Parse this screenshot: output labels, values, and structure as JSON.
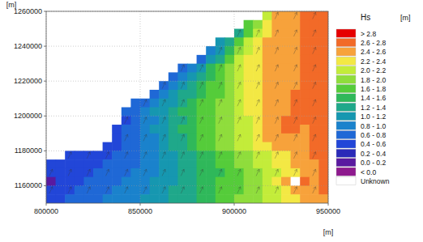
{
  "chart_data": {
    "type": "heatmap",
    "xlabel": "[m]",
    "ylabel": "[m]",
    "xlim": [
      800000,
      950000
    ],
    "ylim": [
      1150000,
      1260000
    ],
    "xticks": [
      800000,
      850000,
      900000,
      950000
    ],
    "yticks": [
      1160000,
      1180000,
      1200000,
      1220000,
      1240000,
      1260000
    ],
    "grid": true,
    "x": [
      802500,
      807500,
      812500,
      817500,
      822500,
      827500,
      832500,
      837500,
      842500,
      847500,
      852500,
      857500,
      862500,
      867500,
      872500,
      877500,
      882500,
      887500,
      892500,
      897500,
      902500,
      907500,
      912500,
      917500,
      922500,
      927500,
      932500,
      937500,
      942500,
      947500
    ],
    "y": [
      1257500,
      1252500,
      1247500,
      1242500,
      1237500,
      1232500,
      1227500,
      1222500,
      1217500,
      1212500,
      1207500,
      1202500,
      1197500,
      1192500,
      1187500,
      1182500,
      1177500,
      1172500,
      1167500,
      1162500,
      1157500,
      1152500
    ],
    "cells": [
      [
        null,
        null,
        null,
        null,
        null,
        null,
        null,
        null,
        null,
        null,
        null,
        null,
        null,
        null,
        null,
        null,
        null,
        null,
        null,
        null,
        null,
        null,
        null,
        2.1,
        2.4,
        2.5,
        2.5,
        2.6,
        2.7,
        2.7
      ],
      [
        null,
        null,
        null,
        null,
        null,
        null,
        null,
        null,
        null,
        null,
        null,
        null,
        null,
        null,
        null,
        null,
        null,
        null,
        null,
        null,
        null,
        1.6,
        1.9,
        2.3,
        2.4,
        2.5,
        2.5,
        2.6,
        2.7,
        2.7
      ],
      [
        null,
        null,
        null,
        null,
        null,
        null,
        null,
        null,
        null,
        null,
        null,
        null,
        null,
        null,
        null,
        null,
        null,
        null,
        null,
        null,
        1.3,
        1.7,
        2.1,
        2.3,
        2.5,
        2.5,
        2.5,
        2.6,
        2.7,
        2.7
      ],
      [
        null,
        null,
        null,
        null,
        null,
        null,
        null,
        null,
        null,
        null,
        null,
        null,
        null,
        null,
        null,
        null,
        null,
        null,
        1.0,
        1.3,
        1.7,
        2.0,
        2.3,
        2.4,
        2.5,
        2.5,
        2.5,
        2.6,
        2.7,
        2.7
      ],
      [
        null,
        null,
        null,
        null,
        null,
        null,
        null,
        null,
        null,
        null,
        null,
        null,
        null,
        null,
        null,
        null,
        null,
        0.8,
        1.1,
        1.5,
        1.8,
        2.1,
        2.3,
        2.4,
        2.5,
        2.5,
        2.5,
        2.6,
        2.7,
        2.7
      ],
      [
        null,
        null,
        null,
        null,
        null,
        null,
        null,
        null,
        null,
        null,
        null,
        null,
        null,
        null,
        null,
        null,
        0.7,
        1.0,
        1.3,
        1.7,
        2.0,
        2.2,
        2.3,
        2.4,
        2.5,
        2.5,
        2.5,
        2.6,
        2.7,
        2.7
      ],
      [
        null,
        null,
        null,
        null,
        null,
        null,
        null,
        null,
        null,
        null,
        null,
        null,
        null,
        null,
        0.6,
        0.8,
        1.1,
        1.4,
        1.7,
        1.9,
        2.1,
        2.2,
        2.3,
        2.4,
        2.5,
        2.5,
        2.5,
        2.6,
        2.7,
        2.7
      ],
      [
        null,
        null,
        null,
        null,
        null,
        null,
        null,
        null,
        null,
        null,
        null,
        null,
        null,
        0.6,
        0.8,
        1.0,
        1.3,
        1.5,
        1.7,
        1.9,
        2.1,
        2.2,
        2.3,
        2.4,
        2.5,
        2.5,
        2.5,
        2.6,
        2.7,
        2.7
      ],
      [
        null,
        null,
        null,
        null,
        null,
        null,
        null,
        null,
        null,
        null,
        null,
        null,
        0.7,
        0.8,
        1.0,
        1.2,
        1.4,
        1.6,
        1.7,
        1.9,
        2.0,
        2.2,
        2.3,
        2.4,
        2.5,
        2.5,
        2.5,
        2.6,
        2.7,
        2.7
      ],
      [
        null,
        null,
        null,
        null,
        null,
        null,
        null,
        null,
        null,
        null,
        null,
        0.7,
        0.8,
        1.0,
        1.2,
        1.3,
        1.5,
        1.6,
        1.7,
        1.9,
        2.0,
        2.2,
        2.3,
        2.4,
        2.5,
        2.5,
        2.6,
        2.6,
        2.7,
        2.7
      ],
      [
        null,
        null,
        null,
        null,
        null,
        null,
        null,
        null,
        null,
        0.6,
        0.7,
        0.8,
        1.0,
        1.1,
        1.3,
        1.4,
        1.6,
        1.7,
        1.8,
        1.9,
        2.0,
        2.2,
        2.3,
        2.4,
        2.5,
        2.5,
        2.6,
        2.6,
        2.7,
        2.7
      ],
      [
        null,
        null,
        null,
        null,
        null,
        null,
        null,
        null,
        0.6,
        0.7,
        0.8,
        1.0,
        1.1,
        1.2,
        1.4,
        1.5,
        1.6,
        1.7,
        1.8,
        1.9,
        2.0,
        2.2,
        2.3,
        2.4,
        2.5,
        2.5,
        2.7,
        2.7,
        2.6,
        2.7
      ],
      [
        null,
        null,
        null,
        null,
        null,
        null,
        null,
        null,
        0.5,
        0.7,
        0.8,
        0.9,
        1.1,
        1.2,
        1.3,
        1.5,
        1.6,
        1.7,
        1.8,
        1.9,
        2.0,
        2.1,
        2.3,
        2.4,
        2.5,
        2.6,
        2.7,
        2.7,
        2.6,
        2.7
      ],
      [
        null,
        null,
        null,
        null,
        null,
        null,
        null,
        0.5,
        0.6,
        0.7,
        0.8,
        1.0,
        1.1,
        1.2,
        1.4,
        1.5,
        1.6,
        1.7,
        1.8,
        1.9,
        2.0,
        2.1,
        2.3,
        2.4,
        2.5,
        2.6,
        2.7,
        2.5,
        2.6,
        2.7
      ],
      [
        null,
        null,
        null,
        null,
        null,
        null,
        null,
        0.5,
        0.6,
        0.7,
        0.8,
        0.9,
        1.1,
        1.2,
        1.3,
        1.5,
        1.6,
        1.7,
        1.8,
        1.9,
        2.0,
        2.1,
        2.2,
        2.4,
        2.5,
        2.5,
        2.5,
        2.5,
        2.6,
        2.7
      ],
      [
        null,
        null,
        null,
        null,
        null,
        null,
        0.5,
        0.5,
        0.6,
        0.7,
        0.8,
        0.9,
        1.1,
        1.2,
        1.3,
        1.4,
        1.6,
        1.7,
        1.8,
        1.9,
        2.0,
        2.1,
        2.2,
        2.3,
        2.4,
        2.5,
        2.5,
        2.5,
        2.6,
        2.7
      ],
      [
        null,
        null,
        0.4,
        0.4,
        0.5,
        0.5,
        0.5,
        0.6,
        0.6,
        0.7,
        0.8,
        0.9,
        1.0,
        1.1,
        1.2,
        1.3,
        1.4,
        1.5,
        1.6,
        1.7,
        1.8,
        1.9,
        2.0,
        2.1,
        2.2,
        2.3,
        2.4,
        2.5,
        2.6,
        2.7
      ],
      [
        0.4,
        0.4,
        0.5,
        0.5,
        0.5,
        0.5,
        0.6,
        0.6,
        0.7,
        0.7,
        0.8,
        0.9,
        1.0,
        1.1,
        1.2,
        1.3,
        1.4,
        1.5,
        1.6,
        1.7,
        1.8,
        1.9,
        2.0,
        2.1,
        2.2,
        2.3,
        2.4,
        2.5,
        2.5,
        2.6
      ],
      [
        0.5,
        0.5,
        0.5,
        0.5,
        0.5,
        0.6,
        0.6,
        0.7,
        0.7,
        0.8,
        0.8,
        0.9,
        1.0,
        1.1,
        1.2,
        1.3,
        1.4,
        1.5,
        1.5,
        1.6,
        1.7,
        1.8,
        1.9,
        2.0,
        2.1,
        2.3,
        2.2,
        2.4,
        2.5,
        2.6
      ],
      [
        0.1,
        0.5,
        0.5,
        0.5,
        0.6,
        0.6,
        0.7,
        0.7,
        0.8,
        0.8,
        0.9,
        1.0,
        1.0,
        1.1,
        1.2,
        1.3,
        1.4,
        1.5,
        1.6,
        1.6,
        1.7,
        1.8,
        1.9,
        2.0,
        2.2,
        2.5,
        null,
        2.6,
        2.5,
        2.6
      ],
      [
        0.5,
        0.5,
        0.5,
        0.6,
        0.6,
        0.7,
        0.7,
        0.8,
        0.8,
        0.9,
        0.9,
        1.0,
        1.1,
        1.2,
        1.2,
        1.3,
        1.4,
        1.5,
        1.6,
        1.7,
        1.7,
        1.8,
        1.9,
        2.0,
        2.1,
        2.2,
        2.4,
        2.5,
        2.5,
        2.6
      ],
      [
        0.5,
        0.5,
        0.6,
        0.6,
        0.7,
        0.7,
        0.8,
        0.8,
        0.9,
        0.9,
        1.0,
        1.0,
        1.1,
        1.2,
        1.3,
        1.3,
        1.4,
        1.5,
        1.6,
        1.7,
        1.8,
        1.8,
        1.9,
        2.0,
        2.1,
        2.2,
        2.3,
        2.4,
        2.5,
        2.5
      ]
    ],
    "wave_direction": 25,
    "colorbar": {
      "title": "Hs",
      "unit": "[m]",
      "entries": [
        {
          "label": ">  2.8",
          "min": 2.8,
          "max": null,
          "color": "#e60000"
        },
        {
          "label": "2.6 - 2.8",
          "min": 2.6,
          "max": 2.8,
          "color": "#f26a28"
        },
        {
          "label": "2.4 - 2.6",
          "min": 2.4,
          "max": 2.6,
          "color": "#f7a23b"
        },
        {
          "label": "2.2 - 2.4",
          "min": 2.2,
          "max": 2.4,
          "color": "#f3e844"
        },
        {
          "label": "2.0 - 2.2",
          "min": 2.0,
          "max": 2.2,
          "color": "#c3ec3a"
        },
        {
          "label": "1.8 - 2.0",
          "min": 1.8,
          "max": 2.0,
          "color": "#8fdd3c"
        },
        {
          "label": "1.6 - 1.8",
          "min": 1.6,
          "max": 1.8,
          "color": "#55cc3a"
        },
        {
          "label": "1.4 - 1.6",
          "min": 1.4,
          "max": 1.6,
          "color": "#2fb85a"
        },
        {
          "label": "1.2 - 1.4",
          "min": 1.2,
          "max": 1.4,
          "color": "#1fa88a"
        },
        {
          "label": "1.0 - 1.2",
          "min": 1.0,
          "max": 1.2,
          "color": "#1697b0"
        },
        {
          "label": "0.8 - 1.0",
          "min": 0.8,
          "max": 1.0,
          "color": "#1a82cc"
        },
        {
          "label": "0.6 - 0.8",
          "min": 0.6,
          "max": 0.8,
          "color": "#1f68d6"
        },
        {
          "label": "0.4 - 0.6",
          "min": 0.4,
          "max": 0.6,
          "color": "#2246d8"
        },
        {
          "label": "0.2 - 0.4",
          "min": 0.2,
          "max": 0.4,
          "color": "#2a2ab8"
        },
        {
          "label": "0.0 - 0.2",
          "min": 0.0,
          "max": 0.2,
          "color": "#5a1aa0"
        },
        {
          "label": "<  0.0",
          "min": null,
          "max": 0.0,
          "color": "#8e1a8e"
        },
        {
          "label": "Unknown",
          "min": null,
          "max": null,
          "color": "#ffffff"
        }
      ]
    }
  }
}
